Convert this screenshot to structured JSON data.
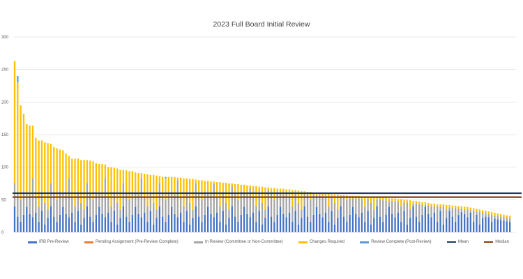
{
  "chart_data": {
    "type": "bar",
    "stacked": true,
    "title": "2023 Full Board Initial Review",
    "xlabel": "",
    "ylabel": "",
    "ylim": [
      0,
      300
    ],
    "yticks": [
      "0",
      "50",
      "100",
      "150",
      "200",
      "250",
      "300"
    ],
    "grid": true,
    "legend_position": "bottom",
    "bar_count": 165,
    "series": [
      {
        "name": "IRB Pre-Review",
        "color": "#4472C4",
        "values": [
          40,
          24,
          16,
          27,
          39,
          28,
          23,
          30,
          16,
          33,
          12,
          22,
          40,
          24,
          16,
          27,
          39,
          28,
          23,
          30,
          16,
          33,
          12,
          22,
          40,
          24,
          16,
          27,
          39,
          28,
          23,
          30,
          16,
          33,
          12,
          22,
          40,
          24,
          16,
          27,
          39,
          28,
          23,
          30,
          16,
          33,
          12,
          22,
          40,
          24,
          16,
          27,
          39,
          28,
          23,
          30,
          16,
          33,
          12,
          22,
          40,
          24,
          16,
          27,
          39,
          28,
          23,
          30,
          16,
          33,
          12,
          22,
          40,
          24,
          16,
          27,
          39,
          28,
          23,
          30,
          16,
          33,
          12,
          22,
          40,
          24,
          16,
          27,
          39,
          28,
          23,
          30,
          16,
          33,
          12,
          22,
          40,
          24,
          16,
          27,
          39,
          28,
          23,
          30,
          16,
          33,
          12,
          22,
          40,
          24,
          16,
          27,
          39,
          28,
          23,
          30,
          16,
          33,
          12,
          22,
          40,
          24,
          16,
          27,
          39,
          28,
          23,
          30,
          16,
          33,
          12,
          22,
          40,
          24,
          16,
          27,
          39,
          28,
          23,
          30,
          16,
          33,
          12,
          22,
          33,
          24,
          16,
          27,
          31,
          28,
          23,
          30,
          16,
          27,
          12,
          22,
          24,
          23,
          16,
          21,
          20,
          19,
          18,
          17,
          16
        ]
      },
      {
        "name": "Pending Assignment (Pre-Review Complete)",
        "color": "#ED7D31",
        "nonzero": {}
      },
      {
        "name": "In Review (Committee or Non-Committee)",
        "color": "#A5A5A5",
        "values": [
          35,
          36,
          34,
          35,
          21,
          30,
          60,
          25,
          24,
          29,
          33,
          13,
          35,
          36,
          34,
          35,
          21,
          30,
          60,
          25,
          24,
          29,
          33,
          13,
          35,
          36,
          34,
          35,
          21,
          30,
          60,
          25,
          24,
          29,
          33,
          13,
          35,
          36,
          34,
          35,
          21,
          30,
          60,
          25,
          24,
          29,
          33,
          13,
          35,
          36,
          34,
          35,
          21,
          30,
          57,
          25,
          24,
          29,
          33,
          13,
          35,
          36,
          34,
          35,
          21,
          30,
          51,
          25,
          24,
          29,
          33,
          13,
          31,
          36,
          34,
          35,
          21,
          30,
          45,
          25,
          24,
          29,
          33,
          13,
          25,
          36,
          34,
          35,
          21,
          30,
          39,
          25,
          24,
          28,
          33,
          13,
          19,
          34,
          34,
          30,
          18,
          28,
          33,
          25,
          24,
          21,
          33,
          13,
          13,
          29,
          34,
          25,
          13,
          24,
          29,
          21,
          24,
          18,
          33,
          13,
          10,
          26,
          33,
          22,
          9,
          20,
          25,
          17,
          24,
          13,
          33,
          13,
          4,
          20,
          27,
          15,
          3,
          13,
          17,
          10,
          23,
          6,
          27,
          13,
          5,
          13,
          21,
          9,
          5,
          7,
          12,
          4,
          17,
          5,
          19,
          8,
          5,
          5,
          11,
          5,
          5,
          5,
          5,
          5,
          5
        ]
      },
      {
        "name": "Changes Required",
        "color": "#FFC000",
        "values": [
          188,
          170,
          145,
          120,
          106,
          106,
          81,
          90,
          101,
          79,
          93,
          102,
          61,
          71,
          79,
          65,
          66,
          63,
          34,
          58,
          73,
          51,
          66,
          76,
          36,
          50,
          59,
          44,
          45,
          47,
          21,
          45,
          60,
          37,
          53,
          61,
          21,
          35,
          44,
          32,
          32,
          33,
          8,
          35,
          49,
          26,
          43,
          52,
          11,
          25,
          33,
          23,
          25,
          27,
          4,
          29,
          43,
          21,
          37,
          47,
          6,
          20,
          30,
          17,
          19,
          20,
          4,
          22,
          37,
          14,
          31,
          40,
          4,
          14,
          24,
          11,
          13,
          14,
          4,
          16,
          31,
          8,
          25,
          34,
          4,
          8,
          18,
          5,
          7,
          9,
          4,
          11,
          25,
          4,
          19,
          28,
          4,
          4,
          12,
          4,
          4,
          4,
          4,
          4,
          19,
          4,
          13,
          23,
          4,
          4,
          7,
          4,
          4,
          4,
          4,
          4,
          15,
          4,
          10,
          20,
          4,
          4,
          4,
          4,
          4,
          4,
          4,
          4,
          11,
          4,
          5,
          14,
          4,
          4,
          4,
          4,
          4,
          4,
          4,
          4,
          4,
          4,
          4,
          7,
          4,
          4,
          4,
          4,
          4,
          4,
          4,
          4,
          4,
          4,
          4,
          4,
          4,
          4,
          4,
          4,
          4,
          4,
          4,
          4,
          4
        ]
      },
      {
        "name": "Review Complete (Post-Review)",
        "color": "#5B9BD5",
        "nonzero": {
          "2": 10,
          "51": 2
        }
      },
      {
        "name": "Mean",
        "color": "#1F3864",
        "type": "line",
        "value": 60
      },
      {
        "name": "Median",
        "color": "#843C0C",
        "type": "line",
        "value": 54
      }
    ]
  }
}
